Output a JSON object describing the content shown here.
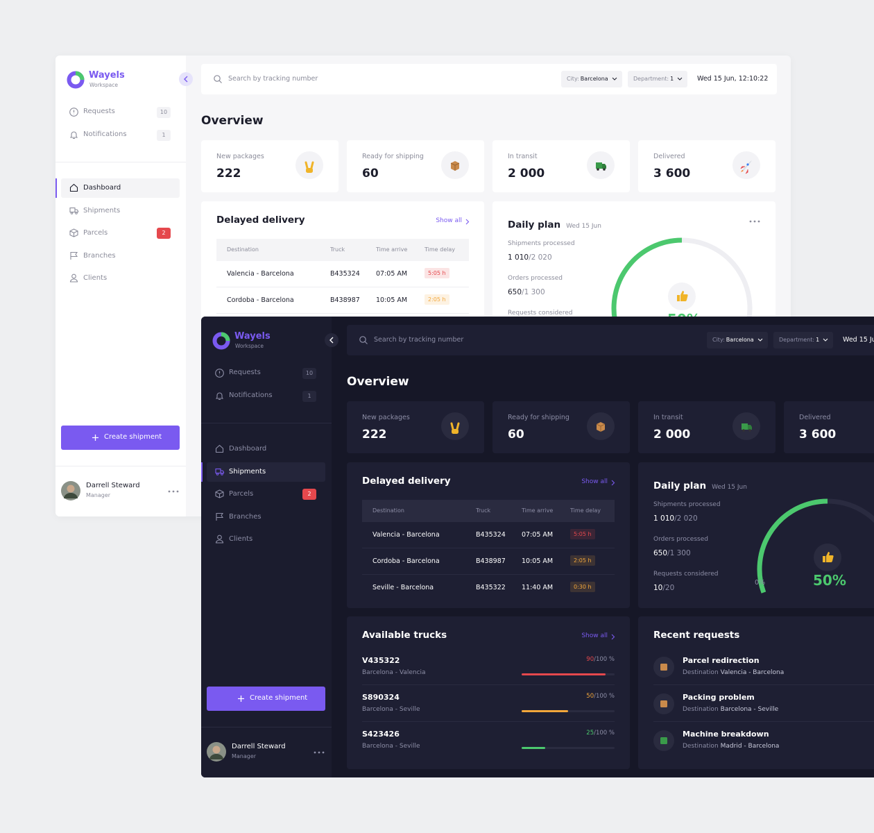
{
  "brand": {
    "name": "Wayels",
    "subtitle": "Workspace"
  },
  "top_nav": [
    {
      "label": "Requests",
      "count": "10"
    },
    {
      "label": "Notifications",
      "count": "1"
    }
  ],
  "nav": [
    {
      "label": "Dashboard"
    },
    {
      "label": "Shipments"
    },
    {
      "label": "Parcels",
      "badge": "2"
    },
    {
      "label": "Branches"
    },
    {
      "label": "Clients"
    }
  ],
  "create_button": "Create shipment",
  "user": {
    "name": "Darrell Steward",
    "role": "Manager"
  },
  "search_placeholder": "Search by tracking number",
  "filters": [
    {
      "label": "City:",
      "value": "Barcelona"
    },
    {
      "label": "Department:",
      "value": "1"
    }
  ],
  "datetime": "Wed 15 Jun, 12:10:22",
  "page_title": "Overview",
  "stats": [
    {
      "label": "New packages",
      "value": "222"
    },
    {
      "label": "Ready for shipping",
      "value": "60"
    },
    {
      "label": "In transit",
      "value": "2 000"
    },
    {
      "label": "Delivered",
      "value": "3 600"
    }
  ],
  "delayed": {
    "title": "Delayed delivery",
    "action": "Show all",
    "columns": [
      "Destination",
      "Truck",
      "Time arrive",
      "Time delay"
    ],
    "rows": [
      {
        "destination": "Valencia - Barcelona",
        "truck": "B435324",
        "time_arrive": "07:05 AM",
        "time_delay": "5:05 h",
        "delay_color": "#e5484d"
      },
      {
        "destination": "Cordoba - Barcelona",
        "truck": "B438987",
        "time_arrive": "10:05 AM",
        "time_delay": "2:05 h",
        "delay_color": "#f2a73b"
      },
      {
        "destination": "Seville - Barcelona",
        "truck": "B435322",
        "time_arrive": "11:40 AM",
        "time_delay": "0:30 h",
        "delay_color": "#f2a73b"
      }
    ]
  },
  "daily_plan": {
    "title": "Daily plan",
    "date": "Wed 15 Jun",
    "metrics": [
      {
        "label": "Shipments processed",
        "done": "1 010",
        "total": "/2 020"
      },
      {
        "label": "Orders processed",
        "done": "650",
        "total": "/1 300"
      },
      {
        "label": "Requests considered",
        "done": "10",
        "total": "/20"
      }
    ],
    "gauge": {
      "value": 50,
      "label": "50%",
      "min_label": "0%"
    }
  },
  "trucks": {
    "title": "Available trucks",
    "action": "Show all",
    "rows": [
      {
        "id": "V435322",
        "route": "Barcelona - Valencia",
        "load": 90,
        "capacity": 100,
        "capacity_label": "/100 %",
        "color": "#e5484d"
      },
      {
        "id": "S890324",
        "route": "Barcelona - Seville",
        "load": 50,
        "capacity": 100,
        "capacity_label": "/100 %",
        "color": "#f2a73b"
      },
      {
        "id": "S423426",
        "route": "Barcelona - Seville",
        "load": 25,
        "capacity": 100,
        "capacity_label": "/100 %",
        "color": "#4cc86e"
      }
    ]
  },
  "requests": {
    "title": "Recent requests",
    "rows": [
      {
        "title": "Parcel redirection",
        "prefix": "Destination",
        "route": "Valencia - Barcelona"
      },
      {
        "title": "Packing problem",
        "prefix": "Destination",
        "route": "Barcelona - Seville"
      },
      {
        "title": "Machine breakdown",
        "prefix": "Destination",
        "route": "Madrid - Barcelona"
      }
    ]
  },
  "screens": [
    {
      "theme": "light",
      "active_nav": 0
    },
    {
      "theme": "dark",
      "active_nav": 1
    }
  ]
}
